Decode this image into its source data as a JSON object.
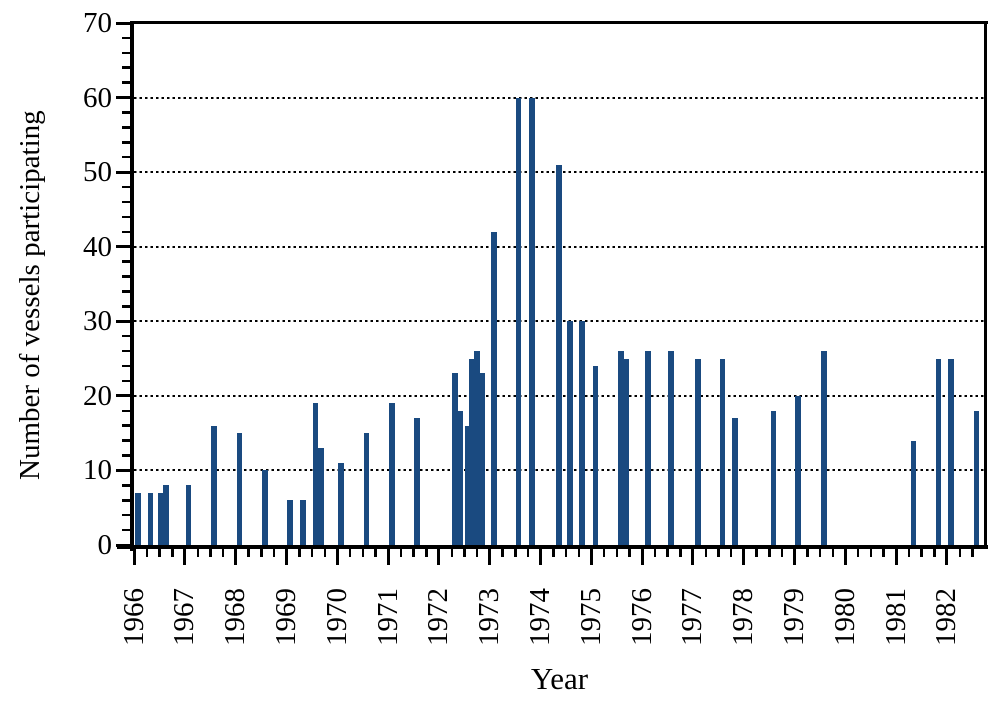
{
  "chart_data": {
    "type": "bar",
    "title": "",
    "xlabel": "Year",
    "ylabel": "Number of vessels participating",
    "xlim": [
      1966,
      1982.75
    ],
    "ylim": [
      0,
      70
    ],
    "x_major_ticks": [
      1966,
      1967,
      1968,
      1969,
      1970,
      1971,
      1972,
      1973,
      1974,
      1975,
      1976,
      1977,
      1978,
      1979,
      1980,
      1981,
      1982
    ],
    "x_tick_labels": [
      "1966",
      "1967",
      "1968",
      "1969",
      "1970",
      "1971",
      "1972",
      "1973",
      "1974",
      "1975",
      "1976",
      "1977",
      "1978",
      "1979",
      "1980",
      "1981",
      "1982"
    ],
    "x_minor_tick_interval": 0.25,
    "y_major_ticks": [
      0,
      10,
      20,
      30,
      40,
      50,
      60,
      70
    ],
    "y_tick_labels": [
      "0",
      "10",
      "20",
      "30",
      "40",
      "50",
      "60",
      "70"
    ],
    "y_minor_tick_interval": 2,
    "gridlines_y": [
      10,
      20,
      30,
      40,
      50,
      60
    ],
    "grid_style": "dotted",
    "legend": "none",
    "bar_color": "#1a4a80",
    "axis_color": "#000000",
    "bar_width_years": 0.108,
    "points": [
      {
        "x": 1966.02,
        "y": 7
      },
      {
        "x": 1966.27,
        "y": 7
      },
      {
        "x": 1966.47,
        "y": 7
      },
      {
        "x": 1966.58,
        "y": 8
      },
      {
        "x": 1967.02,
        "y": 8
      },
      {
        "x": 1967.52,
        "y": 16
      },
      {
        "x": 1968.02,
        "y": 15
      },
      {
        "x": 1968.52,
        "y": 10
      },
      {
        "x": 1969.02,
        "y": 6
      },
      {
        "x": 1969.27,
        "y": 6
      },
      {
        "x": 1969.52,
        "y": 19
      },
      {
        "x": 1969.63,
        "y": 13
      },
      {
        "x": 1970.02,
        "y": 11
      },
      {
        "x": 1970.52,
        "y": 15
      },
      {
        "x": 1971.02,
        "y": 19
      },
      {
        "x": 1971.52,
        "y": 17
      },
      {
        "x": 1972.26,
        "y": 23
      },
      {
        "x": 1972.37,
        "y": 18
      },
      {
        "x": 1972.52,
        "y": 16
      },
      {
        "x": 1972.6,
        "y": 25
      },
      {
        "x": 1972.7,
        "y": 26
      },
      {
        "x": 1972.8,
        "y": 23
      },
      {
        "x": 1973.03,
        "y": 42
      },
      {
        "x": 1973.51,
        "y": 60
      },
      {
        "x": 1973.78,
        "y": 60
      },
      {
        "x": 1974.31,
        "y": 51
      },
      {
        "x": 1974.53,
        "y": 30
      },
      {
        "x": 1974.76,
        "y": 30
      },
      {
        "x": 1975.03,
        "y": 24
      },
      {
        "x": 1975.53,
        "y": 26
      },
      {
        "x": 1975.64,
        "y": 25
      },
      {
        "x": 1976.06,
        "y": 26
      },
      {
        "x": 1976.52,
        "y": 26
      },
      {
        "x": 1977.05,
        "y": 25
      },
      {
        "x": 1977.53,
        "y": 25
      },
      {
        "x": 1977.78,
        "y": 17
      },
      {
        "x": 1978.53,
        "y": 18
      },
      {
        "x": 1979.02,
        "y": 20
      },
      {
        "x": 1979.53,
        "y": 26
      },
      {
        "x": 1981.29,
        "y": 14
      },
      {
        "x": 1981.78,
        "y": 25
      },
      {
        "x": 1982.03,
        "y": 25
      },
      {
        "x": 1982.53,
        "y": 18
      }
    ]
  }
}
